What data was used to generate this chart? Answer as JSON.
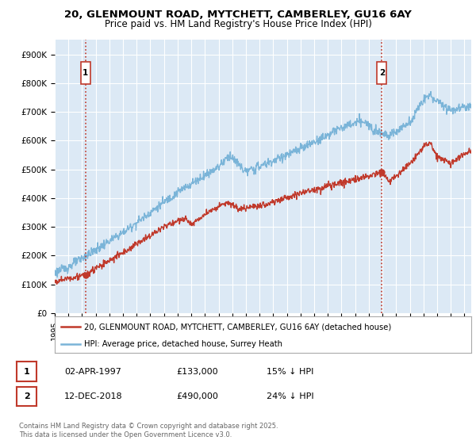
{
  "title_line1": "20, GLENMOUNT ROAD, MYTCHETT, CAMBERLEY, GU16 6AY",
  "title_line2": "Price paid vs. HM Land Registry's House Price Index (HPI)",
  "fig_bg_color": "#ffffff",
  "plot_bg_color": "#dce9f5",
  "ylim": [
    0,
    950000
  ],
  "yticks": [
    0,
    100000,
    200000,
    300000,
    400000,
    500000,
    600000,
    700000,
    800000,
    900000
  ],
  "ytick_labels": [
    "£0",
    "£100K",
    "£200K",
    "£300K",
    "£400K",
    "£500K",
    "£600K",
    "£700K",
    "£800K",
    "£900K"
  ],
  "hpi_color": "#7ab4d8",
  "price_color": "#c0392b",
  "vline_color": "#c0392b",
  "annotation_box_color": "#c0392b",
  "sale1_year": 1997.25,
  "sale1_price": 133000,
  "sale2_year": 2018.95,
  "sale2_price": 490000,
  "legend_line1": "20, GLENMOUNT ROAD, MYTCHETT, CAMBERLEY, GU16 6AY (detached house)",
  "legend_line2": "HPI: Average price, detached house, Surrey Heath",
  "table_row1": [
    "1",
    "02-APR-1997",
    "£133,000",
    "15% ↓ HPI"
  ],
  "table_row2": [
    "2",
    "12-DEC-2018",
    "£490,000",
    "24% ↓ HPI"
  ],
  "footnote": "Contains HM Land Registry data © Crown copyright and database right 2025.\nThis data is licensed under the Open Government Licence v3.0.",
  "xmin": 1995,
  "xmax": 2025.5
}
